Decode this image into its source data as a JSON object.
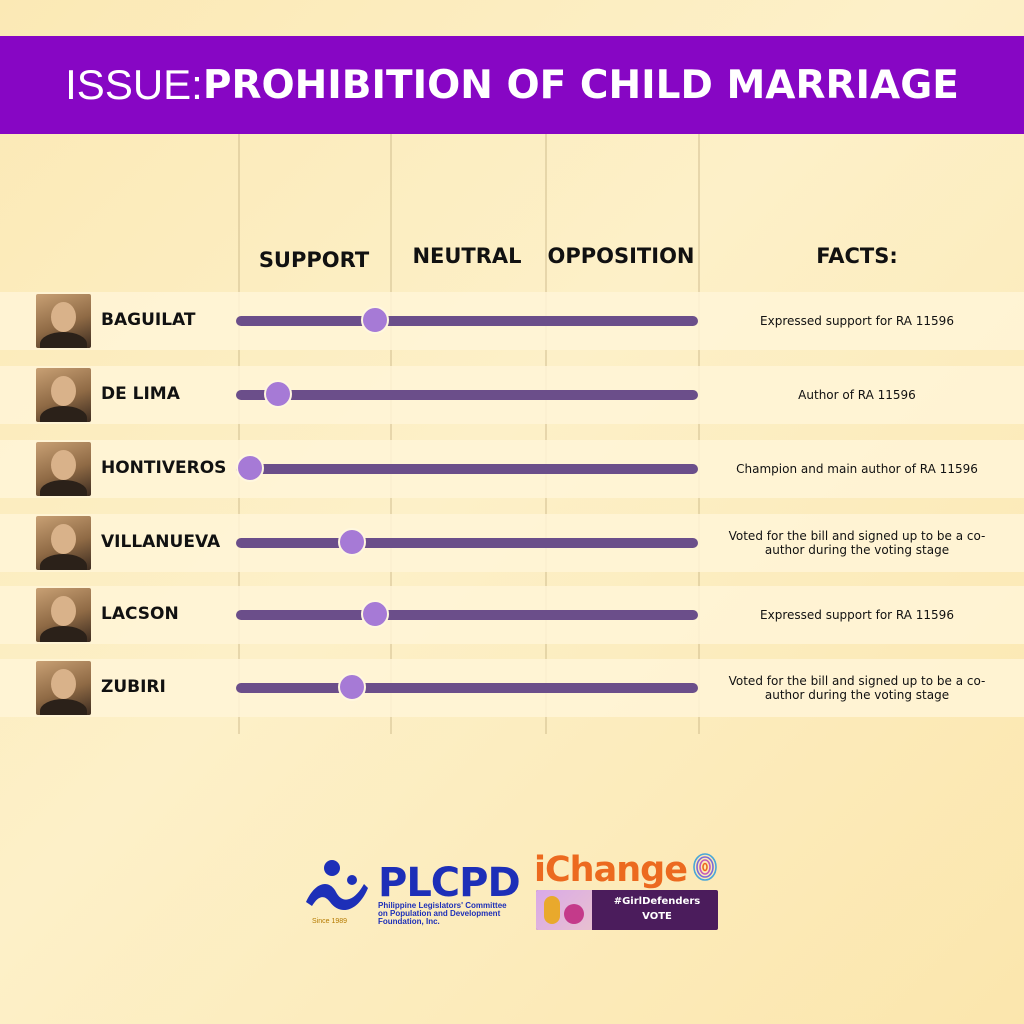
{
  "header": {
    "prefix": "ISSUE:",
    "title": "PROHIBITION OF CHILD MARRIAGE"
  },
  "columns": {
    "support": "SUPPORT",
    "neutral": "NEUTRAL",
    "opposition": "OPPOSITION",
    "facts": "FACTS:"
  },
  "rows": [
    {
      "name": "BAGUILAT",
      "stance": 0.3,
      "fact": "Expressed support for RA 11596"
    },
    {
      "name": "DE LIMA",
      "stance": 0.09,
      "fact": "Author of RA 11596"
    },
    {
      "name": "HONTIVEROS",
      "stance": 0.03,
      "fact": "Champion and main author of RA 11596"
    },
    {
      "name": "VILLANUEVA",
      "stance": 0.25,
      "fact": "Voted for the bill and signed up to be a co-author during the voting stage"
    },
    {
      "name": "LACSON",
      "stance": 0.3,
      "fact": "Expressed support for RA 11596"
    },
    {
      "name": "ZUBIRI",
      "stance": 0.25,
      "fact": "Voted for the bill and signed up to be a co-author during the voting stage"
    }
  ],
  "logos": {
    "plcpd": {
      "name": "PLCPD",
      "tagline": "Philippine Legislators' Committee on Population and Development Foundation, Inc.",
      "since": "Since 1989"
    },
    "ichange": {
      "name": "iChange",
      "badge_line1": "#GirlDefenders",
      "badge_line2": "VOTE"
    }
  },
  "colors": {
    "banner": "#8706c4",
    "track": "#6b4e8a",
    "knob": "#a67ad6"
  }
}
